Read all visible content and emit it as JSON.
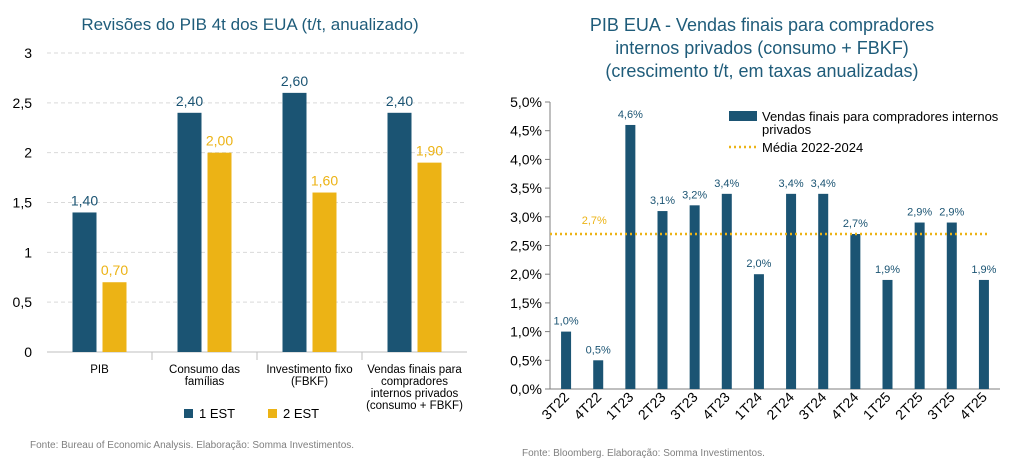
{
  "chart_data": [
    {
      "type": "bar",
      "title": "Revisões do PIB 4t dos EUA (t/t, anualizado)",
      "categories": [
        "PIB",
        "Consumo das famílias",
        "Investimento fixo (FBKF)",
        "Vendas finais para compradores internos privados (consumo + FBKF)"
      ],
      "category_lines": [
        [
          "PIB"
        ],
        [
          "Consumo das",
          "famílias"
        ],
        [
          "Investimento fixo",
          "(FBKF)"
        ],
        [
          "Vendas finais para",
          "compradores",
          "internos privados",
          "(consumo + FBKF)"
        ]
      ],
      "series": [
        {
          "name": "1 EST",
          "color": "#1b5473",
          "values": [
            1.4,
            2.4,
            2.6,
            2.4
          ],
          "labels": [
            "1,40",
            "2,40",
            "2,60",
            "2,40"
          ]
        },
        {
          "name": "2 EST",
          "color": "#ecb315",
          "values": [
            0.7,
            2.0,
            1.6,
            1.9
          ],
          "labels": [
            "0,70",
            "2,00",
            "1,60",
            "1,90"
          ]
        }
      ],
      "ylim": [
        0,
        3
      ],
      "yticks": [
        0,
        0.5,
        1,
        1.5,
        2,
        2.5,
        3
      ],
      "ytick_labels": [
        "0",
        "0,5",
        "1",
        "1,5",
        "2",
        "2,5",
        "3"
      ],
      "grid": true,
      "legend_position": "bottom",
      "source": "Fonte: Bureau of Economic Analysis. Elaboração: Somma Investimentos."
    },
    {
      "type": "bar",
      "title_lines": [
        "PIB EUA - Vendas finais para compradores",
        "internos privados (consumo + FBKF)",
        "(crescimento t/t, em taxas anualizadas)"
      ],
      "categories": [
        "3T22",
        "4T22",
        "1T23",
        "2T23",
        "3T23",
        "4T23",
        "1T24",
        "2T24",
        "3T24",
        "4T24",
        "1T25",
        "2T25",
        "3T25",
        "4T25"
      ],
      "series": [
        {
          "name": "Vendas finais para compradores internos privados",
          "legend_lines": [
            "Vendas finais para compradores internos",
            "privados"
          ],
          "color": "#1b5473",
          "values": [
            1.0,
            0.5,
            4.6,
            3.1,
            3.2,
            3.4,
            2.0,
            3.4,
            3.4,
            2.7,
            1.9,
            2.9,
            2.9,
            1.9
          ],
          "labels": [
            "1,0%",
            "0,5%",
            "4,6%",
            "3,1%",
            "3,2%",
            "3,4%",
            "2,0%",
            "3,4%",
            "3,4%",
            "2,7%",
            "1,9%",
            "2,9%",
            "2,9%",
            "1,9%"
          ]
        }
      ],
      "reference_line": {
        "name": "Média 2022-2024",
        "value": 2.7,
        "label": "2,7%",
        "color": "#ecb315"
      },
      "ylim": [
        0,
        5
      ],
      "yticks": [
        0,
        0.5,
        1,
        1.5,
        2,
        2.5,
        3,
        3.5,
        4,
        4.5,
        5
      ],
      "ytick_labels": [
        "0,0%",
        "0,5%",
        "1,0%",
        "1,5%",
        "2,0%",
        "2,5%",
        "3,0%",
        "3,5%",
        "4,0%",
        "4,5%",
        "5,0%"
      ],
      "grid": false,
      "legend_position": "top-right",
      "source": "Fonte: Bloomberg. Elaboração: Somma Investimentos."
    }
  ]
}
